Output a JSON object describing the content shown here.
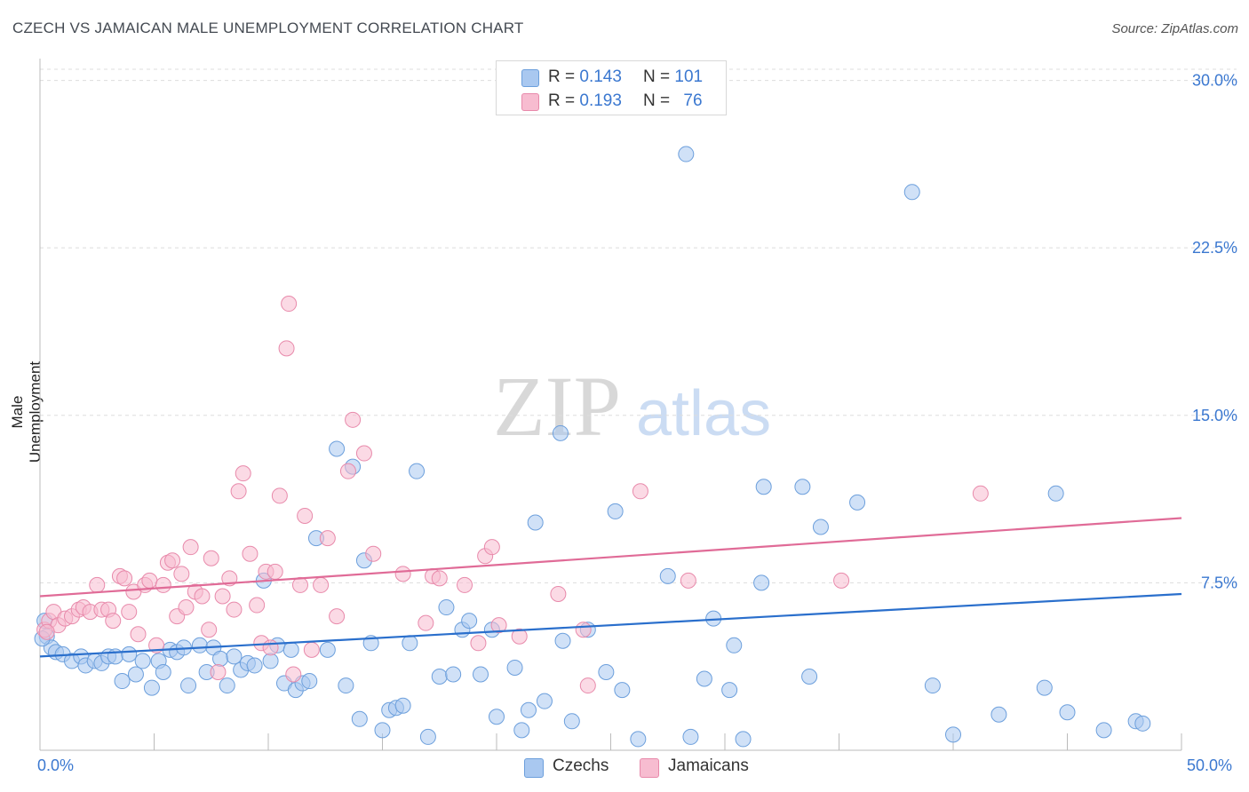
{
  "header": {
    "title": "CZECH VS JAMAICAN MALE UNEMPLOYMENT CORRELATION CHART",
    "source": "Source: ZipAtlas.com"
  },
  "watermark": {
    "zip": "ZIP",
    "atlas": "atlas"
  },
  "legend_top": {
    "rows": [
      {
        "r_label": "R = ",
        "r_value": "0.143",
        "n_label": "N = ",
        "n_value": "101",
        "color": "#a9c8f0"
      },
      {
        "r_label": "R = ",
        "r_value": "0.193",
        "n_label": "N = ",
        "n_value": "76",
        "color": "#f7bcd0"
      }
    ]
  },
  "legend_bottom": {
    "items": [
      {
        "label": "Czechs",
        "color": "#a9c8f0"
      },
      {
        "label": "Jamaicans",
        "color": "#f7bcd0"
      }
    ]
  },
  "colors": {
    "czech_fill": "#a9c8f0",
    "czech_stroke": "#6c9fdc",
    "czech_line": "#2a6fcc",
    "jam_fill": "#f7bcd0",
    "jam_stroke": "#e88aab",
    "jam_line": "#e06b97",
    "tick_label": "#3b78d0",
    "grid": "#dddddd"
  },
  "chart_data": {
    "type": "scatter",
    "title": "CZECH VS JAMAICAN MALE UNEMPLOYMENT CORRELATION CHART",
    "xlabel": "",
    "ylabel": "Male Unemployment",
    "xlim": [
      0,
      50
    ],
    "ylim": [
      0,
      30.5
    ],
    "x_tick_labels": [
      "0.0%",
      "50.0%"
    ],
    "y_ticks": [
      7.5,
      15.0,
      22.5,
      30.0
    ],
    "y_tick_labels": [
      "7.5%",
      "15.0%",
      "22.5%",
      "30.0%"
    ],
    "grid": true,
    "series": [
      {
        "name": "Czechs",
        "r": 0.143,
        "n": 101,
        "trend": {
          "x": [
            0,
            50
          ],
          "y": [
            4.2,
            7.0
          ]
        },
        "points": [
          [
            0.2,
            5.8
          ],
          [
            0.3,
            5.1
          ],
          [
            0.5,
            4.6
          ],
          [
            0.7,
            4.4
          ],
          [
            1.0,
            4.3
          ],
          [
            1.4,
            4.0
          ],
          [
            1.8,
            4.2
          ],
          [
            2.0,
            3.8
          ],
          [
            2.4,
            4.0
          ],
          [
            2.7,
            3.9
          ],
          [
            3.0,
            4.2
          ],
          [
            3.3,
            4.2
          ],
          [
            3.6,
            3.1
          ],
          [
            3.9,
            4.3
          ],
          [
            4.2,
            3.4
          ],
          [
            4.5,
            4.0
          ],
          [
            4.9,
            2.8
          ],
          [
            5.2,
            4.0
          ],
          [
            5.4,
            3.5
          ],
          [
            5.7,
            4.5
          ],
          [
            6.0,
            4.4
          ],
          [
            6.3,
            4.6
          ],
          [
            6.5,
            2.9
          ],
          [
            7.0,
            4.7
          ],
          [
            7.3,
            3.5
          ],
          [
            7.6,
            4.6
          ],
          [
            7.9,
            4.1
          ],
          [
            8.2,
            2.9
          ],
          [
            8.5,
            4.2
          ],
          [
            8.8,
            3.6
          ],
          [
            9.1,
            3.9
          ],
          [
            9.4,
            3.8
          ],
          [
            9.8,
            7.6
          ],
          [
            10.1,
            4.0
          ],
          [
            10.4,
            4.7
          ],
          [
            10.7,
            3.0
          ],
          [
            11.0,
            4.5
          ],
          [
            11.2,
            2.7
          ],
          [
            11.5,
            3.0
          ],
          [
            11.8,
            3.1
          ],
          [
            12.1,
            9.5
          ],
          [
            12.6,
            4.5
          ],
          [
            13.0,
            13.5
          ],
          [
            13.4,
            2.9
          ],
          [
            13.7,
            12.7
          ],
          [
            14.2,
            8.5
          ],
          [
            14.0,
            1.4
          ],
          [
            14.5,
            4.8
          ],
          [
            15.0,
            0.9
          ],
          [
            15.3,
            1.8
          ],
          [
            15.6,
            1.9
          ],
          [
            15.9,
            2.0
          ],
          [
            16.2,
            4.8
          ],
          [
            16.5,
            12.5
          ],
          [
            17.0,
            0.6
          ],
          [
            17.5,
            3.3
          ],
          [
            17.8,
            6.4
          ],
          [
            18.1,
            3.4
          ],
          [
            18.5,
            5.4
          ],
          [
            18.8,
            5.8
          ],
          [
            19.3,
            3.4
          ],
          [
            19.8,
            5.4
          ],
          [
            20.0,
            1.5
          ],
          [
            20.8,
            3.7
          ],
          [
            21.1,
            0.9
          ],
          [
            21.4,
            1.8
          ],
          [
            21.7,
            10.2
          ],
          [
            22.1,
            2.2
          ],
          [
            22.9,
            4.9
          ],
          [
            23.3,
            1.3
          ],
          [
            22.8,
            14.2
          ],
          [
            24.0,
            5.4
          ],
          [
            24.8,
            3.5
          ],
          [
            25.2,
            10.7
          ],
          [
            25.5,
            2.7
          ],
          [
            26.2,
            0.5
          ],
          [
            27.5,
            7.8
          ],
          [
            28.3,
            26.7
          ],
          [
            28.5,
            0.6
          ],
          [
            29.1,
            3.2
          ],
          [
            29.5,
            5.9
          ],
          [
            30.2,
            2.7
          ],
          [
            30.4,
            4.7
          ],
          [
            30.8,
            0.5
          ],
          [
            31.6,
            7.5
          ],
          [
            31.7,
            11.8
          ],
          [
            33.4,
            11.8
          ],
          [
            33.7,
            3.3
          ],
          [
            34.2,
            10.0
          ],
          [
            35.8,
            11.1
          ],
          [
            38.2,
            25.0
          ],
          [
            39.1,
            2.9
          ],
          [
            40.0,
            0.7
          ],
          [
            42.0,
            1.6
          ],
          [
            44.0,
            2.8
          ],
          [
            44.5,
            11.5
          ],
          [
            45.0,
            1.7
          ],
          [
            46.6,
            0.9
          ],
          [
            48.0,
            1.3
          ],
          [
            48.3,
            1.2
          ],
          [
            0.1,
            5.0
          ]
        ]
      },
      {
        "name": "Jamaicans",
        "r": 0.193,
        "n": 76,
        "trend": {
          "x": [
            0,
            50
          ],
          "y": [
            6.9,
            10.4
          ]
        },
        "points": [
          [
            0.2,
            5.4
          ],
          [
            0.4,
            5.8
          ],
          [
            0.6,
            6.2
          ],
          [
            0.8,
            5.6
          ],
          [
            1.1,
            5.9
          ],
          [
            1.4,
            6.0
          ],
          [
            1.7,
            6.3
          ],
          [
            1.9,
            6.4
          ],
          [
            2.2,
            6.2
          ],
          [
            2.5,
            7.4
          ],
          [
            2.7,
            6.3
          ],
          [
            3.0,
            6.3
          ],
          [
            3.2,
            5.8
          ],
          [
            3.5,
            7.8
          ],
          [
            3.7,
            7.7
          ],
          [
            3.9,
            6.2
          ],
          [
            4.1,
            7.1
          ],
          [
            4.3,
            5.2
          ],
          [
            4.6,
            7.4
          ],
          [
            4.8,
            7.6
          ],
          [
            5.1,
            4.7
          ],
          [
            5.4,
            7.4
          ],
          [
            5.6,
            8.4
          ],
          [
            5.8,
            8.5
          ],
          [
            6.0,
            6.0
          ],
          [
            6.2,
            7.9
          ],
          [
            6.4,
            6.4
          ],
          [
            6.6,
            9.1
          ],
          [
            6.8,
            7.1
          ],
          [
            7.1,
            6.9
          ],
          [
            7.4,
            5.4
          ],
          [
            7.5,
            8.6
          ],
          [
            7.8,
            3.5
          ],
          [
            8.0,
            6.9
          ],
          [
            8.3,
            7.7
          ],
          [
            8.5,
            6.3
          ],
          [
            8.7,
            11.6
          ],
          [
            8.9,
            12.4
          ],
          [
            9.2,
            8.8
          ],
          [
            9.5,
            6.5
          ],
          [
            9.7,
            4.8
          ],
          [
            9.9,
            8.0
          ],
          [
            10.1,
            4.6
          ],
          [
            10.3,
            8.0
          ],
          [
            10.5,
            11.4
          ],
          [
            10.8,
            18.0
          ],
          [
            10.9,
            20.0
          ],
          [
            11.1,
            3.4
          ],
          [
            11.4,
            7.4
          ],
          [
            11.6,
            10.5
          ],
          [
            11.9,
            4.5
          ],
          [
            12.3,
            7.4
          ],
          [
            12.6,
            9.5
          ],
          [
            13.0,
            6.0
          ],
          [
            13.5,
            12.5
          ],
          [
            13.7,
            14.8
          ],
          [
            14.2,
            13.3
          ],
          [
            14.6,
            8.8
          ],
          [
            15.9,
            7.9
          ],
          [
            16.9,
            5.7
          ],
          [
            17.2,
            7.8
          ],
          [
            17.5,
            7.7
          ],
          [
            18.6,
            7.4
          ],
          [
            19.2,
            4.8
          ],
          [
            19.5,
            8.7
          ],
          [
            19.8,
            9.1
          ],
          [
            20.1,
            5.6
          ],
          [
            21.0,
            5.1
          ],
          [
            22.7,
            7.0
          ],
          [
            23.8,
            5.4
          ],
          [
            24.0,
            2.9
          ],
          [
            26.3,
            11.6
          ],
          [
            28.4,
            7.6
          ],
          [
            35.1,
            7.6
          ],
          [
            41.2,
            11.5
          ],
          [
            0.3,
            5.3
          ]
        ]
      }
    ]
  }
}
